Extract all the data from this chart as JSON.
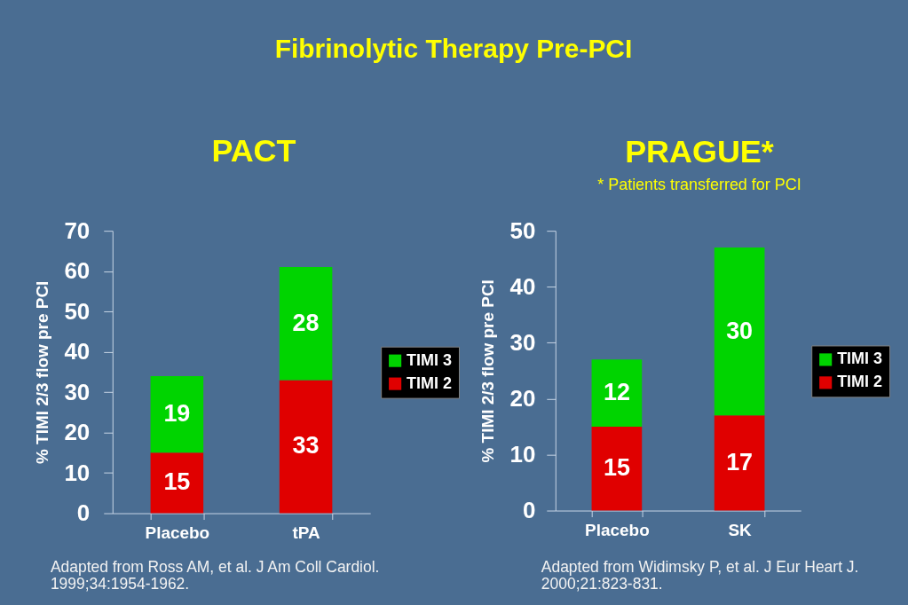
{
  "chart_data": [
    {
      "type": "other",
      "title": "Fibrinolytic Therapy Pre-PCI"
    },
    {
      "type": "bar",
      "title": "PACT",
      "categories": [
        "Placebo",
        "tPA"
      ],
      "series": [
        {
          "name": "TIMI 2",
          "color": "#e00000",
          "values": [
            15,
            33
          ]
        },
        {
          "name": "TIMI 3",
          "color": "#00d400",
          "values": [
            19,
            28
          ]
        }
      ],
      "stacked": true,
      "ylabel": "% TIMI 2/3 flow pre PCI",
      "ylim": [
        0,
        70
      ],
      "yticks": [
        0,
        10,
        20,
        30,
        40,
        50,
        60,
        70
      ],
      "grid": false,
      "data_labels": true,
      "legend": "right",
      "annotations": [
        "Adapted from Ross AM, et al. J Am Coll Cardiol.",
        "1999;34:1954-1962."
      ]
    },
    {
      "type": "bar",
      "title": "PRAGUE*",
      "subtitle": "* Patients transferred for PCI",
      "categories": [
        "Placebo",
        "SK"
      ],
      "series": [
        {
          "name": "TIMI 2",
          "color": "#e00000",
          "values": [
            15,
            17
          ]
        },
        {
          "name": "TIMI 3",
          "color": "#00d400",
          "values": [
            12,
            30
          ]
        }
      ],
      "stacked": true,
      "ylabel": "% TIMI 2/3 flow pre PCI",
      "ylim": [
        0,
        50
      ],
      "yticks": [
        0,
        10,
        20,
        30,
        40,
        50
      ],
      "grid": false,
      "data_labels": true,
      "legend": "right",
      "annotations": [
        "Adapted from Widimsky P, et al. J Eur Heart J.",
        "2000;21:823-831."
      ]
    }
  ]
}
